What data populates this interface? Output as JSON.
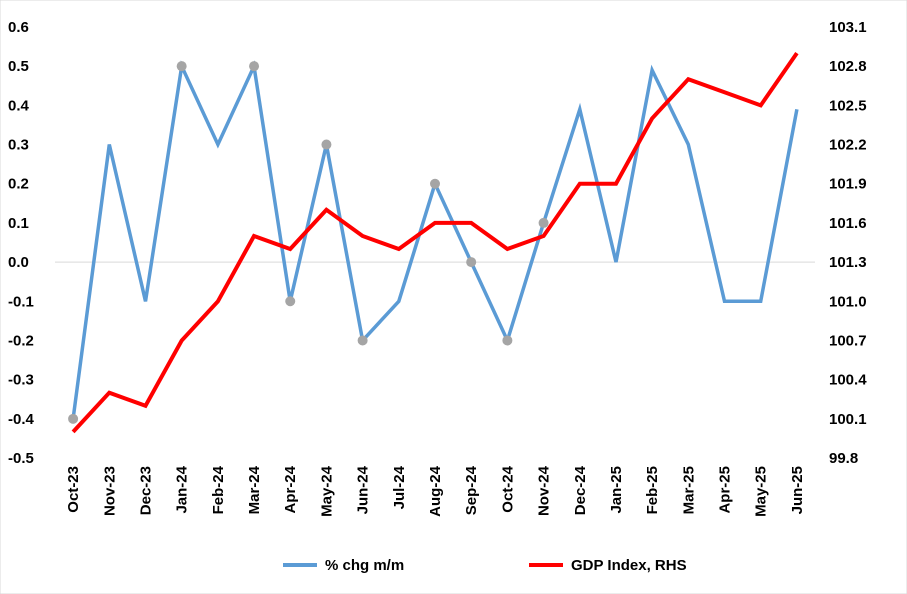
{
  "chart_data": {
    "type": "line",
    "title": "",
    "xlabel": "",
    "ylabel": "",
    "y2label": "",
    "categories": [
      "Oct-23",
      "Nov-23",
      "Dec-23",
      "Jan-24",
      "Feb-24",
      "Mar-24",
      "Apr-24",
      "May-24",
      "Jun-24",
      "Jul-24",
      "Aug-24",
      "Sep-24",
      "Oct-24",
      "Nov-24",
      "Dec-24",
      "Jan-25",
      "Feb-25",
      "Mar-25",
      "Apr-25",
      "May-25",
      "Jun-25"
    ],
    "ylim": [
      -0.5,
      0.6
    ],
    "y_ticks": [
      "-0.5",
      "-0.4",
      "-0.3",
      "-0.2",
      "-0.1",
      "0.0",
      "0.1",
      "0.2",
      "0.3",
      "0.4",
      "0.5",
      "0.6"
    ],
    "y2lim": [
      99.8,
      103.1
    ],
    "y2_ticks": [
      "99.8",
      "100.1",
      "100.4",
      "100.7",
      "101.0",
      "101.3",
      "101.6",
      "101.9",
      "102.2",
      "102.5",
      "102.8",
      "103.1"
    ],
    "grid": false,
    "legend_position": "bottom",
    "series": [
      {
        "name": "% chg m/m",
        "axis": "left",
        "color": "#5B9BD5",
        "values": [
          -0.4,
          0.3,
          -0.1,
          0.5,
          0.3,
          0.5,
          -0.1,
          0.3,
          -0.2,
          -0.1,
          0.2,
          0.0,
          -0.2,
          0.1,
          0.39,
          0.0,
          0.49,
          0.3,
          -0.1,
          -0.1,
          0.39
        ],
        "marked_points": [
          0,
          3,
          5,
          6,
          7,
          8,
          10,
          11,
          12,
          13
        ],
        "marker_color": "#A5A5A5"
      },
      {
        "name": "GDP Index, RHS",
        "axis": "right",
        "color": "#FF0000",
        "values": [
          100.0,
          100.3,
          100.2,
          100.7,
          101.0,
          101.5,
          101.4,
          101.7,
          101.5,
          101.4,
          101.6,
          101.6,
          101.4,
          101.5,
          101.9,
          101.9,
          102.4,
          102.7,
          102.6,
          102.5,
          102.9
        ]
      }
    ]
  }
}
